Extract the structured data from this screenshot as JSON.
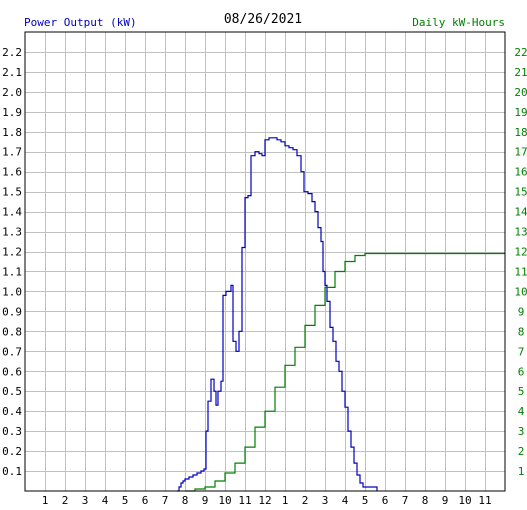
{
  "chart_data": {
    "type": "line",
    "title": "08/26/2021",
    "ylabel": "Power Output (kW)",
    "y2label": "Daily kW-Hours",
    "xlim": [
      0,
      24
    ],
    "ylim": [
      0,
      2.3
    ],
    "y2lim": [
      0,
      23
    ],
    "grid": true,
    "x_tick_labels": [
      "1",
      "2",
      "3",
      "4",
      "5",
      "6",
      "7",
      "8",
      "9",
      "10",
      "11",
      "12",
      "1",
      "2",
      "3",
      "4",
      "5",
      "6",
      "7",
      "8",
      "9",
      "10",
      "11"
    ],
    "y_tick_labels": [
      "0.1",
      "0.2",
      "0.3",
      "0.4",
      "0.5",
      "0.6",
      "0.7",
      "0.8",
      "0.9",
      "1.0",
      "1.1",
      "1.2",
      "1.3",
      "1.4",
      "1.5",
      "1.6",
      "1.7",
      "1.8",
      "1.9",
      "2.0",
      "2.1",
      "2.2"
    ],
    "y2_tick_labels": [
      "1",
      "2",
      "3",
      "4",
      "5",
      "6",
      "7",
      "8",
      "9",
      "10",
      "11",
      "12",
      "13",
      "14",
      "15",
      "16",
      "17",
      "18",
      "19",
      "20",
      "21",
      "22"
    ],
    "colors": {
      "power": "#0000c0",
      "energy": "#008000",
      "date": "#000000"
    },
    "series": [
      {
        "name": "Power Output (kW)",
        "axis": "left",
        "points": [
          [
            7.6,
            0.0
          ],
          [
            7.7,
            0.02
          ],
          [
            7.8,
            0.04
          ],
          [
            7.9,
            0.05
          ],
          [
            8.0,
            0.06
          ],
          [
            8.2,
            0.07
          ],
          [
            8.4,
            0.08
          ],
          [
            8.6,
            0.09
          ],
          [
            8.8,
            0.1
          ],
          [
            8.95,
            0.11
          ],
          [
            9.05,
            0.3
          ],
          [
            9.15,
            0.45
          ],
          [
            9.3,
            0.56
          ],
          [
            9.45,
            0.5
          ],
          [
            9.55,
            0.43
          ],
          [
            9.65,
            0.5
          ],
          [
            9.8,
            0.55
          ],
          [
            9.9,
            0.98
          ],
          [
            10.05,
            1.0
          ],
          [
            10.2,
            1.0
          ],
          [
            10.3,
            1.03
          ],
          [
            10.4,
            0.75
          ],
          [
            10.55,
            0.7
          ],
          [
            10.7,
            0.8
          ],
          [
            10.85,
            1.22
          ],
          [
            11.0,
            1.47
          ],
          [
            11.15,
            1.48
          ],
          [
            11.3,
            1.68
          ],
          [
            11.5,
            1.7
          ],
          [
            11.7,
            1.69
          ],
          [
            11.85,
            1.68
          ],
          [
            12.0,
            1.76
          ],
          [
            12.2,
            1.77
          ],
          [
            12.4,
            1.77
          ],
          [
            12.6,
            1.76
          ],
          [
            12.8,
            1.75
          ],
          [
            13.0,
            1.73
          ],
          [
            13.2,
            1.72
          ],
          [
            13.4,
            1.71
          ],
          [
            13.6,
            1.68
          ],
          [
            13.8,
            1.6
          ],
          [
            13.95,
            1.5
          ],
          [
            14.15,
            1.49
          ],
          [
            14.35,
            1.45
          ],
          [
            14.5,
            1.4
          ],
          [
            14.65,
            1.32
          ],
          [
            14.8,
            1.25
          ],
          [
            14.9,
            1.1
          ],
          [
            15.0,
            1.03
          ],
          [
            15.1,
            0.95
          ],
          [
            15.25,
            0.82
          ],
          [
            15.4,
            0.75
          ],
          [
            15.55,
            0.65
          ],
          [
            15.7,
            0.6
          ],
          [
            15.85,
            0.5
          ],
          [
            16.0,
            0.42
          ],
          [
            16.15,
            0.3
          ],
          [
            16.3,
            0.22
          ],
          [
            16.45,
            0.14
          ],
          [
            16.6,
            0.08
          ],
          [
            16.75,
            0.04
          ],
          [
            16.9,
            0.02
          ],
          [
            17.5,
            0.02
          ],
          [
            17.6,
            0.0
          ]
        ]
      },
      {
        "name": "Daily kW-Hours",
        "axis": "right",
        "points": [
          [
            8.0,
            0.0
          ],
          [
            8.5,
            0.1
          ],
          [
            9.0,
            0.2
          ],
          [
            9.5,
            0.5
          ],
          [
            10.0,
            0.9
          ],
          [
            10.5,
            1.4
          ],
          [
            11.0,
            2.2
          ],
          [
            11.5,
            3.2
          ],
          [
            12.0,
            4.0
          ],
          [
            12.5,
            5.2
          ],
          [
            13.0,
            6.3
          ],
          [
            13.5,
            7.2
          ],
          [
            14.0,
            8.3
          ],
          [
            14.5,
            9.3
          ],
          [
            15.0,
            10.2
          ],
          [
            15.5,
            11.0
          ],
          [
            16.0,
            11.5
          ],
          [
            16.5,
            11.8
          ],
          [
            17.0,
            11.9
          ],
          [
            24.0,
            11.9
          ]
        ]
      }
    ]
  }
}
